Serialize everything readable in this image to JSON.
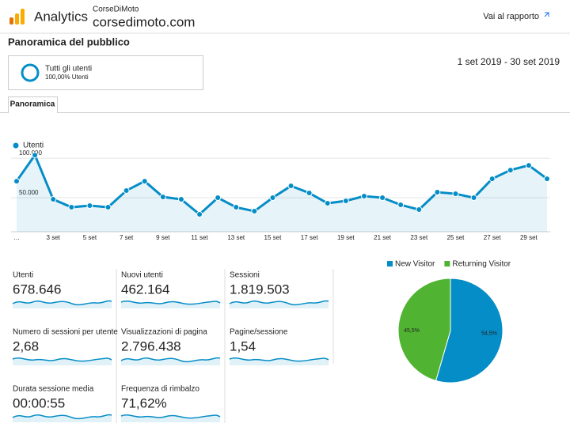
{
  "header": {
    "brand": "Analytics",
    "account": "CorseDiMoto",
    "property": "corsedimoto.com",
    "report_link": "Vai al rapporto"
  },
  "page_title": "Panoramica del pubblico",
  "segment": {
    "name": "Tutti gli utenti",
    "subtitle": "100,00% Utenti"
  },
  "date_range": "1 set 2019 - 30 set 2019",
  "tabs": [
    "Panoramica"
  ],
  "metrics": [
    {
      "label": "Utenti",
      "value": "678.646"
    },
    {
      "label": "Nuovi utenti",
      "value": "462.164"
    },
    {
      "label": "Sessioni",
      "value": "1.819.503"
    },
    {
      "label": "Numero di sessioni per utente",
      "value": "2,68"
    },
    {
      "label": "Visualizzazioni di pagina",
      "value": "2.796.438"
    },
    {
      "label": "Pagine/sessione",
      "value": "1,54"
    },
    {
      "label": "Durata sessione media",
      "value": "00:00:55"
    },
    {
      "label": "Frequenza di rimbalzo",
      "value": "71,62%"
    }
  ],
  "chart_data": [
    {
      "type": "line",
      "categories": [
        "…",
        null,
        "3 set",
        null,
        "5 set",
        null,
        "7 set",
        null,
        "9 set",
        null,
        "11 set",
        null,
        "13 set",
        null,
        "15 set",
        null,
        "17 set",
        null,
        "19 set",
        null,
        "21 set",
        null,
        "23 set",
        null,
        "25 set",
        null,
        "27 set",
        null,
        "29 set",
        null
      ],
      "series": [
        {
          "name": "Utenti",
          "color": "#058dc7",
          "values": [
            71000,
            104000,
            48000,
            38000,
            40000,
            38000,
            59000,
            71000,
            51000,
            48000,
            29000,
            50000,
            38000,
            33000,
            50000,
            65000,
            56000,
            43000,
            46000,
            52000,
            50000,
            41000,
            35000,
            57000,
            55000,
            50000,
            74000,
            85000,
            91000,
            74000
          ]
        }
      ],
      "ylim": [
        0,
        105000
      ],
      "yticks": [
        {
          "value": 50000,
          "label": "50.000"
        },
        {
          "value": 100000,
          "label": "100.000"
        }
      ],
      "grid": true
    },
    {
      "type": "pie",
      "categories": [
        "New Visitor",
        "Returning Visitor"
      ],
      "values": [
        54.5,
        45.5
      ],
      "value_labels": [
        "54,5%",
        "45,5%"
      ],
      "colors": [
        "#058dc7",
        "#50b432"
      ],
      "legend": "top"
    }
  ]
}
